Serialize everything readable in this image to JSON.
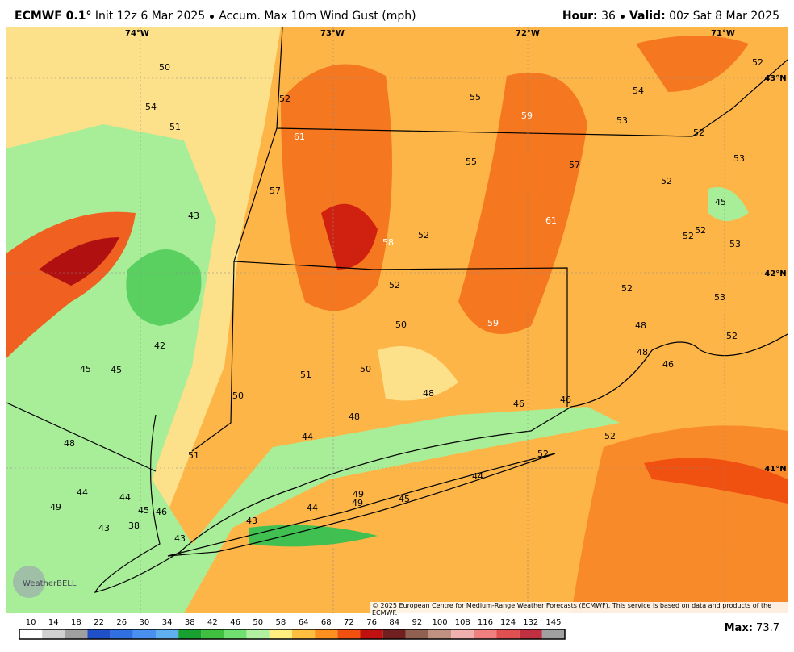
{
  "header": {
    "model": "ECMWF 0.1°",
    "init": "Init 12z 6 Mar 2025",
    "field": "Accum. Max 10m Wind Gust (mph)",
    "hour_label": "Hour:",
    "hour": "36",
    "valid_label": "Valid:",
    "valid": "00z Sat 8 Mar 2025"
  },
  "map": {
    "lon_labels": [
      "74°W",
      "73°W",
      "72°W",
      "71°W"
    ],
    "lat_labels": [
      "43°N",
      "42°N",
      "41°N"
    ],
    "values": [
      50,
      54,
      51,
      52,
      55,
      59,
      53,
      54,
      52,
      52,
      53,
      61,
      55,
      57,
      52,
      57,
      43,
      61,
      52,
      58,
      52,
      52,
      53,
      45,
      52,
      52,
      53,
      50,
      59,
      48,
      42,
      52,
      48,
      46,
      45,
      45,
      50,
      51,
      48,
      50,
      46,
      46,
      48,
      44,
      52,
      48,
      52,
      51,
      44,
      44,
      44,
      49,
      49,
      49,
      45,
      44,
      45,
      46,
      43,
      43,
      38,
      43
    ],
    "logo": "WeatherBELL",
    "copyright": "© 2025 European Centre for Medium-Range Weather Forecasts (ECMWF). This service is based on data and products of the ECMWF."
  },
  "colorbar": {
    "ticks": [
      10,
      14,
      18,
      22,
      26,
      30,
      34,
      38,
      42,
      46,
      50,
      58,
      64,
      68,
      72,
      76,
      84,
      92,
      100,
      108,
      116,
      124,
      132,
      145
    ],
    "colors": [
      "#ffffff",
      "#d0d0d0",
      "#a0a0a0",
      "#2050c8",
      "#3070e0",
      "#4a90f0",
      "#60b0f0",
      "#18a030",
      "#40c040",
      "#70e070",
      "#b0f0a0",
      "#fff080",
      "#ffc040",
      "#ff9020",
      "#f05010",
      "#c01010",
      "#702020",
      "#906050",
      "#c09080",
      "#f0b0b0",
      "#f08080",
      "#e05050",
      "#c03040",
      "#a0a0a0"
    ],
    "max_label": "Max:",
    "max": 73.7
  }
}
